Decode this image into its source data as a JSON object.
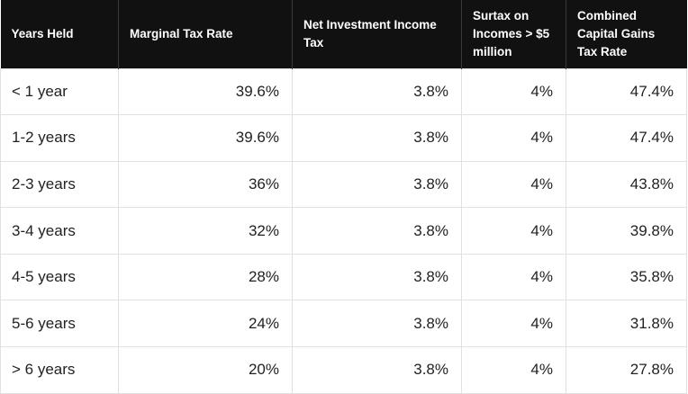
{
  "table": {
    "headers": [
      "Years Held",
      "Marginal Tax Rate",
      "Net Investment Income Tax",
      "Surtax on Incomes > $5 million",
      "Combined Capital Gains Tax Rate"
    ],
    "rows": [
      [
        "< 1 year",
        "39.6%",
        "3.8%",
        "4%",
        "47.4%"
      ],
      [
        "1-2 years",
        "39.6%",
        "3.8%",
        "4%",
        "47.4%"
      ],
      [
        "2-3 years",
        "36%",
        "3.8%",
        "4%",
        "43.8%"
      ],
      [
        "3-4 years",
        "32%",
        "3.8%",
        "4%",
        "39.8%"
      ],
      [
        "4-5 years",
        "28%",
        "3.8%",
        "4%",
        "35.8%"
      ],
      [
        "5-6 years",
        "24%",
        "3.8%",
        "4%",
        "31.8%"
      ],
      [
        "> 6 years",
        "20%",
        "3.8%",
        "4%",
        "27.8%"
      ]
    ]
  }
}
